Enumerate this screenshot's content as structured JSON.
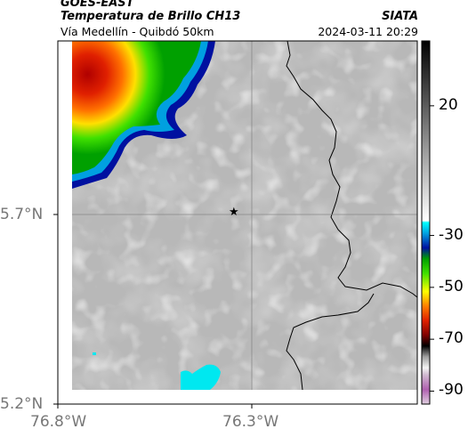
{
  "header": {
    "satellite": "GOES-EAST",
    "product": "Temperatura de Brillo CH13",
    "region": "Vía Medellín - Quibdó 50km",
    "agency": "SIATA",
    "datetime": "2024-03-11 20:29"
  },
  "axes": {
    "y_ticks": [
      "5.7°N",
      "5.2°N"
    ],
    "x_ticks": [
      "76.8°W",
      "76.3°W"
    ]
  },
  "colorbar": {
    "tick_labels": [
      "20",
      "-30",
      "-50",
      "-70",
      "-90"
    ],
    "tick_values": [
      20,
      -30,
      -50,
      -70,
      -90
    ],
    "range": [
      -95,
      45
    ]
  },
  "marker": {
    "symbol": "★"
  }
}
